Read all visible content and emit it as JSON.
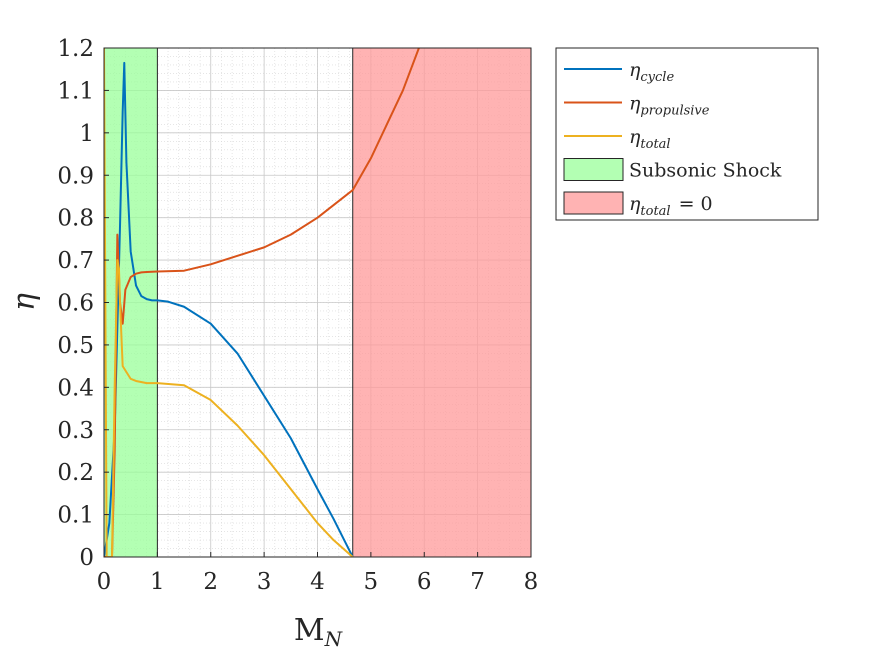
{
  "chart_data": {
    "type": "line",
    "xlabel": "M",
    "xlabel_sub": "N",
    "ylabel": "η",
    "xlim": [
      0,
      8
    ],
    "ylim": [
      0,
      1.2
    ],
    "xticks": [
      "0",
      "1",
      "2",
      "3",
      "4",
      "5",
      "6",
      "7",
      "8"
    ],
    "yticks": [
      "0",
      "0.1",
      "0.2",
      "0.3",
      "0.4",
      "0.5",
      "0.6",
      "0.7",
      "0.8",
      "0.9",
      "1",
      "1.1",
      "1.2"
    ],
    "grid": "on, with minor grid",
    "legend_position": "outside top-right",
    "regions": [
      {
        "name": "Subsonic Shock",
        "x": [
          0,
          1
        ],
        "color": "#99ff99"
      },
      {
        "name": "η_total = 0",
        "x": [
          4.66,
          8
        ],
        "color": "#ff9999"
      }
    ],
    "series": [
      {
        "name": "η_cycle",
        "symbol": "η",
        "subscript": "cycle",
        "color": "#0072BD",
        "x": [
          0.0,
          0.1,
          0.2,
          0.3,
          0.35,
          0.38,
          0.42,
          0.5,
          0.6,
          0.7,
          0.8,
          0.9,
          1.0,
          1.2,
          1.5,
          2.0,
          2.5,
          3.0,
          3.5,
          4.0,
          4.3,
          4.5,
          4.66
        ],
        "y": [
          0.0,
          0.08,
          0.3,
          0.78,
          1.05,
          1.165,
          0.93,
          0.72,
          0.64,
          0.615,
          0.608,
          0.605,
          0.605,
          0.602,
          0.59,
          0.55,
          0.48,
          0.38,
          0.28,
          0.16,
          0.09,
          0.04,
          0.0
        ]
      },
      {
        "name": "η_propulsive",
        "symbol": "η",
        "subscript": "propulsive",
        "color": "#D95319",
        "x": [
          0.0,
          0.1,
          0.15,
          0.2,
          0.25,
          0.3,
          0.35,
          0.4,
          0.5,
          0.6,
          0.7,
          0.8,
          1.0,
          1.5,
          2.0,
          2.5,
          3.0,
          3.5,
          4.0,
          4.66,
          5.0,
          5.3,
          5.6,
          5.9
        ],
        "y": [
          0.0,
          0.0,
          0.0,
          0.25,
          0.76,
          0.6,
          0.55,
          0.63,
          0.66,
          0.668,
          0.671,
          0.672,
          0.673,
          0.675,
          0.69,
          0.71,
          0.73,
          0.76,
          0.8,
          0.865,
          0.94,
          1.02,
          1.1,
          1.2
        ]
      },
      {
        "name": "η_total",
        "symbol": "η",
        "subscript": "total",
        "color": "#EDB120",
        "x": [
          0.0,
          0.05,
          0.1,
          0.15,
          0.2,
          0.25,
          0.28,
          0.3,
          0.35,
          0.4,
          0.45,
          0.5,
          0.6,
          0.8,
          1.0,
          1.5,
          2.0,
          2.5,
          3.0,
          3.5,
          4.0,
          4.3,
          4.66
        ],
        "y": [
          1.2,
          0.0,
          0.0,
          0.0,
          0.4,
          0.7,
          0.68,
          0.6,
          0.45,
          0.44,
          0.43,
          0.42,
          0.415,
          0.41,
          0.41,
          0.405,
          0.37,
          0.31,
          0.24,
          0.16,
          0.08,
          0.04,
          0.0
        ]
      }
    ],
    "legend": [
      {
        "symbol": "η",
        "sub": "cycle",
        "kind": "line",
        "color": "#0072BD"
      },
      {
        "symbol": "η",
        "sub": "propulsive",
        "kind": "line",
        "color": "#D95319"
      },
      {
        "symbol": "η",
        "sub": "total",
        "kind": "line",
        "color": "#EDB120"
      },
      {
        "text": "Subsonic Shock",
        "kind": "patch",
        "color": "#99ff99"
      },
      {
        "symbol": "η",
        "sub": "total",
        "suffix": "= 0",
        "kind": "patch",
        "color": "#ff9999"
      }
    ]
  }
}
